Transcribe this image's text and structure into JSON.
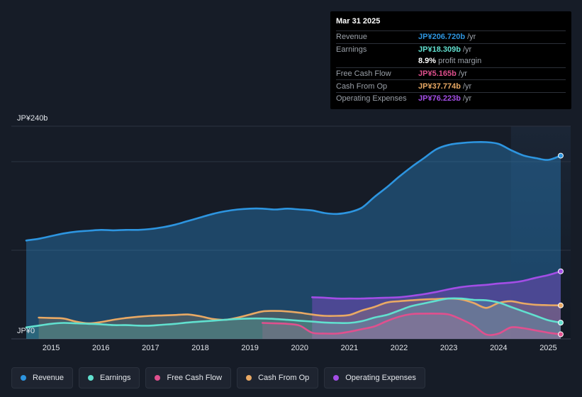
{
  "colors": {
    "revenue": "#2d95e0",
    "earnings": "#61e0cf",
    "fcf": "#e0508e",
    "cfo": "#e9a964",
    "opex": "#a34ee6",
    "grid": "#2c3340",
    "axis_text": "#e2e5ea"
  },
  "tooltip": {
    "date": "Mar 31 2025",
    "rows": [
      {
        "label": "Revenue",
        "value": "JP¥206.720b",
        "unit": "/yr",
        "color": "#2d95e0"
      },
      {
        "label": "Earnings",
        "value": "JP¥18.309b",
        "unit": "/yr",
        "color": "#61e0cf"
      },
      {
        "label": "",
        "value": "8.9%",
        "unit": "profit margin",
        "color": "#ffffff"
      },
      {
        "label": "Free Cash Flow",
        "value": "JP¥5.165b",
        "unit": "/yr",
        "color": "#e0508e"
      },
      {
        "label": "Cash From Op",
        "value": "JP¥37.774b",
        "unit": "/yr",
        "color": "#e9a964"
      },
      {
        "label": "Operating Expenses",
        "value": "JP¥76.223b",
        "unit": "/yr",
        "color": "#a34ee6"
      }
    ]
  },
  "legend": [
    {
      "label": "Revenue",
      "color": "#2d95e0"
    },
    {
      "label": "Earnings",
      "color": "#61e0cf"
    },
    {
      "label": "Free Cash Flow",
      "color": "#e0508e"
    },
    {
      "label": "Cash From Op",
      "color": "#e9a964"
    },
    {
      "label": "Operating Expenses",
      "color": "#a34ee6"
    }
  ],
  "chart_data": {
    "type": "area",
    "title": "",
    "xlabel": "",
    "ylabel": "",
    "y_top_label": "JP¥240b",
    "y_bottom_label": "JP¥0",
    "ylim": [
      0,
      240
    ],
    "xlim": [
      2014.2,
      2025.45
    ],
    "x_ticks": [
      2015,
      2016,
      2017,
      2018,
      2019,
      2020,
      2021,
      2022,
      2023,
      2024,
      2025
    ],
    "x_tick_labels": [
      "2015",
      "2016",
      "2017",
      "2018",
      "2019",
      "2020",
      "2021",
      "2022",
      "2023",
      "2024",
      "2025"
    ],
    "gridlines": [
      0,
      100,
      200,
      240
    ],
    "highlight_from": 2024.25,
    "series": [
      {
        "name": "Revenue",
        "key": "revenue",
        "x": [
          2014.5,
          2014.75,
          2015.0,
          2015.25,
          2015.5,
          2015.75,
          2016.0,
          2016.25,
          2016.5,
          2016.75,
          2017.0,
          2017.25,
          2017.5,
          2017.75,
          2018.0,
          2018.25,
          2018.5,
          2018.75,
          2019.0,
          2019.25,
          2019.5,
          2019.75,
          2020.0,
          2020.25,
          2020.5,
          2020.75,
          2021.0,
          2021.25,
          2021.5,
          2021.75,
          2022.0,
          2022.25,
          2022.5,
          2022.75,
          2023.0,
          2023.25,
          2023.5,
          2023.75,
          2024.0,
          2024.25,
          2024.5,
          2024.75,
          2025.0,
          2025.25
        ],
        "values": [
          111,
          113,
          116,
          119,
          121,
          122,
          123,
          122.5,
          123,
          123,
          124,
          126,
          129,
          133,
          137,
          141,
          144,
          146,
          147,
          147,
          146,
          147,
          146,
          145,
          142,
          141,
          143,
          148,
          160,
          171,
          183,
          194,
          204,
          214,
          219,
          221,
          222,
          222,
          220,
          213,
          207,
          204,
          202,
          206.72
        ]
      },
      {
        "name": "Operating Expenses",
        "key": "opex",
        "x": [
          2020.25,
          2020.5,
          2020.75,
          2021.0,
          2021.25,
          2021.5,
          2021.75,
          2022.0,
          2022.25,
          2022.5,
          2022.75,
          2023.0,
          2023.25,
          2023.5,
          2023.75,
          2024.0,
          2024.25,
          2024.5,
          2024.75,
          2025.0,
          2025.25
        ],
        "values": [
          47,
          46.5,
          45.5,
          45.5,
          45.5,
          46,
          46.5,
          47,
          48.5,
          50.5,
          53,
          56,
          58.5,
          60,
          61,
          62.5,
          63.5,
          65.5,
          69,
          72,
          76.22
        ]
      },
      {
        "name": "Cash From Op",
        "key": "cfo",
        "x": [
          2014.75,
          2015.0,
          2015.25,
          2015.5,
          2015.75,
          2016.0,
          2016.25,
          2016.5,
          2016.75,
          2017.0,
          2017.25,
          2017.5,
          2017.75,
          2018.0,
          2018.25,
          2018.5,
          2018.75,
          2019.0,
          2019.25,
          2019.5,
          2019.75,
          2020.0,
          2020.25,
          2020.5,
          2020.75,
          2021.0,
          2021.25,
          2021.5,
          2021.75,
          2022.0,
          2022.25,
          2022.5,
          2022.75,
          2023.0,
          2023.25,
          2023.5,
          2023.75,
          2024.0,
          2024.25,
          2024.5,
          2024.75,
          2025.0,
          2025.25
        ],
        "values": [
          24,
          23.5,
          23,
          19.5,
          17.5,
          19,
          21.5,
          23.5,
          25,
          26,
          26.5,
          27,
          27.5,
          25.5,
          22.5,
          21.5,
          24,
          27.5,
          31,
          31.5,
          31,
          29.5,
          27.5,
          26,
          26,
          27,
          32,
          36,
          41,
          42.5,
          43.5,
          44.5,
          45,
          45.5,
          44.5,
          40.5,
          35,
          40.5,
          42.5,
          40,
          38.5,
          38,
          37.77
        ]
      },
      {
        "name": "Free Cash Flow",
        "key": "fcf",
        "x": [
          2019.25,
          2019.5,
          2019.75,
          2020.0,
          2020.25,
          2020.5,
          2020.75,
          2021.0,
          2021.25,
          2021.5,
          2021.75,
          2022.0,
          2022.25,
          2022.5,
          2022.75,
          2023.0,
          2023.25,
          2023.5,
          2023.75,
          2024.0,
          2024.25,
          2024.5,
          2024.75,
          2025.0,
          2025.25
        ],
        "values": [
          18,
          17.5,
          17,
          15,
          7,
          6,
          6,
          8,
          11,
          14,
          20,
          25,
          28,
          28.5,
          28.5,
          27.5,
          22,
          15,
          5,
          6,
          13,
          12,
          9.5,
          7,
          5.17
        ]
      },
      {
        "name": "Earnings",
        "key": "earnings",
        "x": [
          2014.5,
          2014.75,
          2015.0,
          2015.25,
          2015.5,
          2015.75,
          2016.0,
          2016.25,
          2016.5,
          2016.75,
          2017.0,
          2017.25,
          2017.5,
          2017.75,
          2018.0,
          2018.25,
          2018.5,
          2018.75,
          2019.0,
          2019.25,
          2019.5,
          2019.75,
          2020.0,
          2020.25,
          2020.5,
          2020.75,
          2021.0,
          2021.25,
          2021.5,
          2021.75,
          2022.0,
          2022.25,
          2022.5,
          2022.75,
          2023.0,
          2023.25,
          2023.5,
          2023.75,
          2024.0,
          2024.25,
          2024.5,
          2024.75,
          2025.0,
          2025.25
        ],
        "values": [
          13,
          15,
          17,
          18,
          17.5,
          17,
          16.5,
          15.5,
          15.5,
          15,
          15,
          16,
          17,
          18.5,
          19.5,
          20.5,
          21.5,
          22.5,
          23,
          23,
          22.5,
          21.5,
          20.5,
          19.5,
          18.5,
          18,
          18,
          20,
          24,
          27,
          32,
          37,
          40,
          43,
          45.5,
          45.5,
          44,
          43.5,
          41,
          36,
          31,
          26,
          21,
          18.31
        ]
      }
    ]
  }
}
